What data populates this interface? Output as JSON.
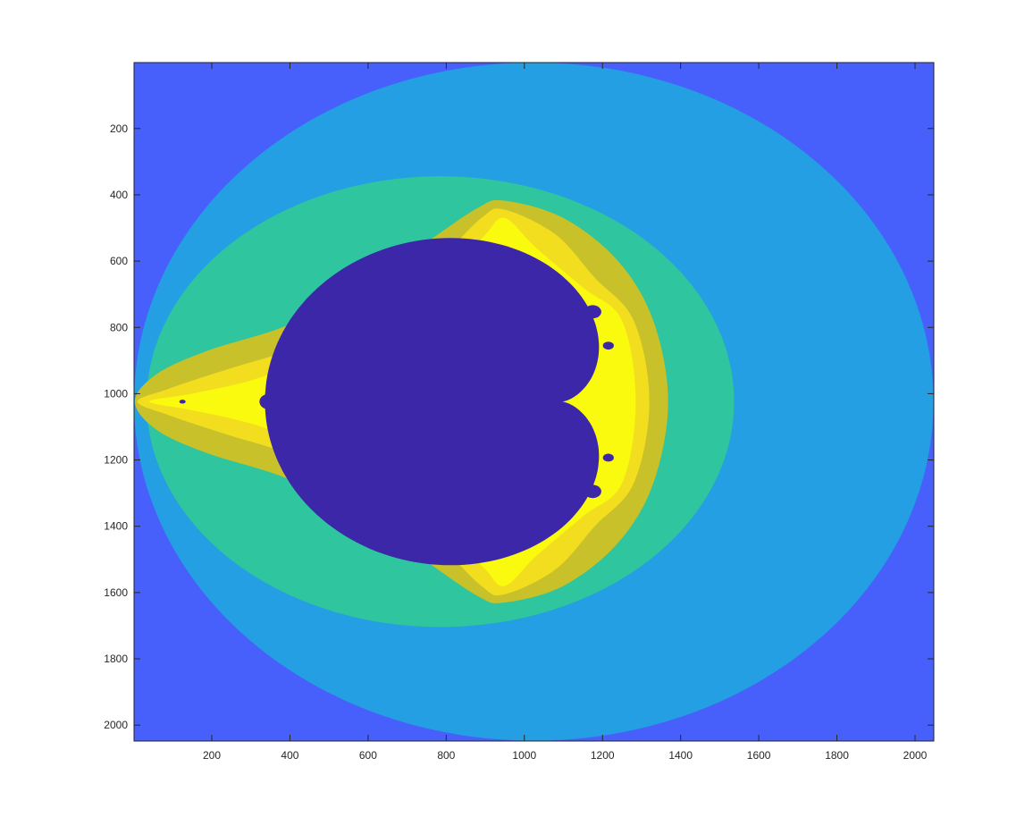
{
  "chart_data": {
    "type": "heatmap",
    "title": "",
    "xlabel": "",
    "ylabel": "",
    "xlim": [
      1,
      2048
    ],
    "ylim": [
      1,
      2048
    ],
    "y_direction": "reverse",
    "grid": false,
    "x_ticks": [
      200,
      400,
      600,
      800,
      1000,
      1200,
      1400,
      1600,
      1800,
      2000
    ],
    "y_ticks": [
      200,
      400,
      600,
      800,
      1000,
      1200,
      1400,
      1600,
      1800,
      2000
    ],
    "x_tick_labels": [
      "200",
      "400",
      "600",
      "800",
      "1000",
      "1200",
      "1400",
      "1600",
      "1800",
      "2000"
    ],
    "y_tick_labels": [
      "200",
      "400",
      "600",
      "800",
      "1000",
      "1200",
      "1400",
      "1600",
      "1800",
      "2000"
    ],
    "colors": {
      "outer": "#4760fb",
      "band_1": "#249fe3",
      "band_2": "#2ec59f",
      "band_3": "#c9c129",
      "band_4": "#f2de1f",
      "band_5": "#f9fa0e",
      "set_interior": "#3c27a8"
    },
    "regions": [
      {
        "name": "outer-region",
        "color_key": "outer",
        "type": "rect",
        "x": [
          1,
          2048
        ],
        "y": [
          1,
          2048
        ]
      },
      {
        "name": "band-1",
        "color_key": "band_1",
        "type": "ellipse",
        "cx": 1024,
        "cy": 1024,
        "rx": 1023,
        "ry": 1023
      },
      {
        "name": "band-2",
        "color_key": "band_2",
        "type": "ellipse",
        "cx": 785,
        "cy": 1024,
        "rx": 752,
        "ry": 680
      },
      {
        "name": "band-3",
        "color_key": "band_3",
        "type": "outline",
        "points": [
          [
            3,
            1024
          ],
          [
            60,
            940
          ],
          [
            190,
            870
          ],
          [
            380,
            800
          ],
          [
            560,
            700
          ],
          [
            730,
            560
          ],
          [
            880,
            440
          ],
          [
            950,
            418
          ],
          [
            1100,
            470
          ],
          [
            1240,
            600
          ],
          [
            1330,
            780
          ],
          [
            1368,
            1024
          ],
          [
            1330,
            1270
          ],
          [
            1240,
            1450
          ],
          [
            1100,
            1580
          ],
          [
            950,
            1630
          ],
          [
            880,
            1610
          ],
          [
            730,
            1490
          ],
          [
            560,
            1350
          ],
          [
            380,
            1250
          ],
          [
            190,
            1180
          ],
          [
            60,
            1110
          ]
        ]
      },
      {
        "name": "band-4",
        "color_key": "band_4",
        "type": "outline",
        "points": [
          [
            10,
            1024
          ],
          [
            90,
            985
          ],
          [
            230,
            930
          ],
          [
            420,
            860
          ],
          [
            600,
            760
          ],
          [
            760,
            620
          ],
          [
            890,
            470
          ],
          [
            950,
            445
          ],
          [
            1080,
            520
          ],
          [
            1180,
            650
          ],
          [
            1280,
            780
          ],
          [
            1320,
            1024
          ],
          [
            1280,
            1270
          ],
          [
            1180,
            1400
          ],
          [
            1080,
            1530
          ],
          [
            950,
            1605
          ],
          [
            890,
            1580
          ],
          [
            760,
            1430
          ],
          [
            600,
            1290
          ],
          [
            420,
            1190
          ],
          [
            230,
            1120
          ],
          [
            90,
            1065
          ]
        ]
      },
      {
        "name": "band-5",
        "color_key": "band_5",
        "type": "outline",
        "points": [
          [
            40,
            1024
          ],
          [
            150,
            1000
          ],
          [
            300,
            960
          ],
          [
            440,
            900
          ],
          [
            580,
            830
          ],
          [
            700,
            740
          ],
          [
            820,
            620
          ],
          [
            900,
            520
          ],
          [
            950,
            470
          ],
          [
            1030,
            560
          ],
          [
            1150,
            680
          ],
          [
            1250,
            780
          ],
          [
            1285,
            1024
          ],
          [
            1250,
            1270
          ],
          [
            1150,
            1370
          ],
          [
            1030,
            1490
          ],
          [
            950,
            1580
          ],
          [
            900,
            1530
          ],
          [
            820,
            1430
          ],
          [
            700,
            1310
          ],
          [
            580,
            1220
          ],
          [
            440,
            1150
          ],
          [
            300,
            1090
          ],
          [
            150,
            1050
          ]
        ]
      },
      {
        "name": "main-cardioid",
        "color_key": "set_interior",
        "type": "cardioid",
        "cx": 1096,
        "cy": 1024,
        "a": 190
      },
      {
        "name": "period-2-bulb",
        "color_key": "set_interior",
        "type": "ellipse",
        "cx": 509,
        "cy": 1024,
        "rx": 128,
        "ry": 125
      },
      {
        "name": "top-bulb",
        "color_key": "set_interior",
        "type": "ellipse",
        "cx": 968,
        "cy": 635,
        "rx": 50,
        "ry": 48
      },
      {
        "name": "bottom-bulb",
        "color_key": "set_interior",
        "type": "ellipse",
        "cx": 968,
        "cy": 1413,
        "rx": 50,
        "ry": 48
      },
      {
        "name": "bulb-upper-left",
        "color_key": "set_interior",
        "type": "ellipse",
        "cx": 762,
        "cy": 739,
        "rx": 22,
        "ry": 20
      },
      {
        "name": "bulb-lower-left",
        "color_key": "set_interior",
        "type": "ellipse",
        "cx": 762,
        "cy": 1309,
        "rx": 22,
        "ry": 20
      },
      {
        "name": "bulb-upper-right",
        "color_key": "set_interior",
        "type": "ellipse",
        "cx": 1175,
        "cy": 753,
        "rx": 22,
        "ry": 20
      },
      {
        "name": "bulb-lower-right",
        "color_key": "set_interior",
        "type": "ellipse",
        "cx": 1175,
        "cy": 1295,
        "rx": 22,
        "ry": 20
      },
      {
        "name": "bulb-left-upper",
        "color_key": "set_interior",
        "type": "ellipse",
        "cx": 443,
        "cy": 907,
        "rx": 14,
        "ry": 12
      },
      {
        "name": "bulb-left-lower",
        "color_key": "set_interior",
        "type": "ellipse",
        "cx": 443,
        "cy": 1141,
        "rx": 14,
        "ry": 12
      },
      {
        "name": "bulb-far-left",
        "color_key": "set_interior",
        "type": "ellipse",
        "cx": 348,
        "cy": 1024,
        "rx": 26,
        "ry": 24
      },
      {
        "name": "antenna-blob",
        "color_key": "set_interior",
        "type": "ellipse",
        "cx": 125,
        "cy": 1024,
        "rx": 8,
        "ry": 6
      },
      {
        "name": "bulb-right-top",
        "color_key": "set_interior",
        "type": "ellipse",
        "cx": 1215,
        "cy": 855,
        "rx": 14,
        "ry": 12
      },
      {
        "name": "bulb-right-bottom",
        "color_key": "set_interior",
        "type": "ellipse",
        "cx": 1215,
        "cy": 1193,
        "rx": 14,
        "ry": 12
      },
      {
        "name": "bulb-top-tip",
        "color_key": "set_interior",
        "type": "ellipse",
        "cx": 968,
        "cy": 573,
        "rx": 9,
        "ry": 9
      },
      {
        "name": "bulb-bottom-tip",
        "color_key": "set_interior",
        "type": "ellipse",
        "cx": 968,
        "cy": 1475,
        "rx": 9,
        "ry": 9
      }
    ]
  }
}
